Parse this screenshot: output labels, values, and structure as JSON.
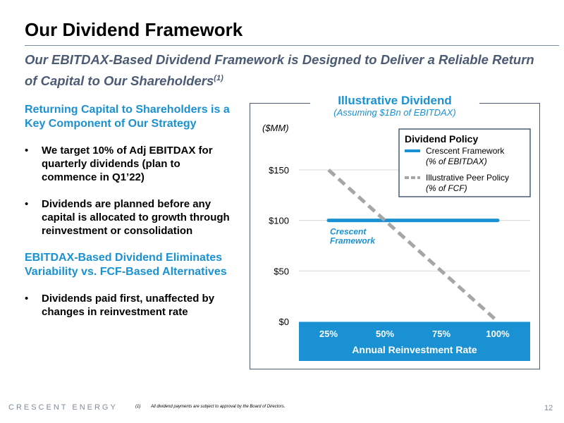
{
  "slide": {
    "title": "Our Dividend Framework",
    "subtitle_main": "Our EBITDAX-Based Dividend Framework is Designed to Deliver a Reliable Return of Capital to Our Shareholders",
    "subtitle_sup": "(1)"
  },
  "left": {
    "heading1": "Returning Capital to Shareholders is a Key Component of Our Strategy",
    "bullet1": "We target 10% of Adj EBITDAX for quarterly dividends (plan to commence in Q1’22)",
    "bullet2": "Dividends are planned before any capital is allocated to growth through reinvestment or consolidation",
    "heading2": "EBITDAX-Based Dividend Eliminates Variability vs. FCF-Based Alternatives",
    "bullet3": "Dividends paid first, unaffected by changes in reinvestment rate",
    "bullet_char": "•"
  },
  "chart_header": {
    "title": "Illustrative Dividend",
    "subtitle": "(Assuming $1Bn of EBITDAX)"
  },
  "chart_data": {
    "type": "line",
    "xlabel": "Annual Reinvestment Rate",
    "ylabel": "($MM)",
    "x": [
      25,
      100
    ],
    "xticks": [
      "25%",
      "50%",
      "75%",
      "100%"
    ],
    "yticks": [
      "$0",
      "$50",
      "$100",
      "$150"
    ],
    "ylim": [
      0,
      150
    ],
    "series": [
      {
        "name": "Crescent Framework",
        "sub": "(% of EBITDAX)",
        "x": [
          25,
          100
        ],
        "values": [
          100,
          100
        ],
        "color": "#1a91d2",
        "style": "solid",
        "label": "Crescent Framework"
      },
      {
        "name": "Illustrative Peer Policy",
        "sub": "(% of FCF)",
        "x": [
          25,
          100
        ],
        "values": [
          150,
          0
        ],
        "color": "#a6a6a6",
        "style": "dashed"
      }
    ],
    "legend_title": "Dividend Policy",
    "legend_position": "top-right",
    "grid": true,
    "axis_band_color": "#1a91d2"
  },
  "footer": {
    "brand": "CRESCENT ENERGY",
    "footnote_mark": "(1)",
    "footnote": "All dividend payments are subject to approval by the Board of Directors.",
    "page": "12"
  }
}
